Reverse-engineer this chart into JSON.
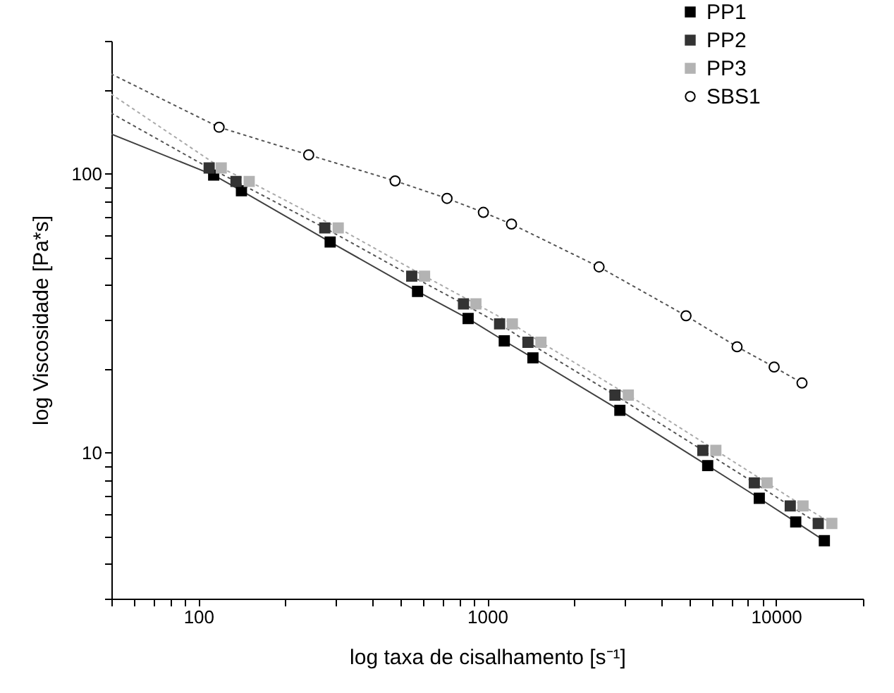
{
  "chart_data": {
    "type": "scatter",
    "xlabel": "log taxa de cisalhamento [s⁻¹]",
    "ylabel": "log Viscosidade [Pa*s]",
    "log": "xy",
    "grid": false,
    "legend": "top right",
    "xlim": [
      50,
      20000
    ],
    "ylim": [
      3,
      300
    ],
    "xticks": [
      {
        "value": 50,
        "label": null
      },
      {
        "value": 60,
        "label": null
      },
      {
        "value": 70,
        "label": null
      },
      {
        "value": 80,
        "label": null
      },
      {
        "value": 90,
        "label": null
      },
      100,
      {
        "value": 200,
        "label": null
      },
      {
        "value": 300,
        "label": null
      },
      {
        "value": 400,
        "label": null
      },
      {
        "value": 500,
        "label": null
      },
      {
        "value": 600,
        "label": null
      },
      {
        "value": 700,
        "label": null
      },
      {
        "value": 800,
        "label": null
      },
      {
        "value": 900,
        "label": null
      },
      1000,
      {
        "value": 2000,
        "label": null
      },
      {
        "value": 3000,
        "label": null
      },
      {
        "value": 4000,
        "label": null
      },
      {
        "value": 5000,
        "label": null
      },
      {
        "value": 6000,
        "label": null
      },
      {
        "value": 7000,
        "label": null
      },
      {
        "value": 8000,
        "label": null
      },
      {
        "value": 9000,
        "label": null
      },
      10000,
      {
        "value": 20000,
        "label": null
      }
    ],
    "yticks": [
      {
        "value": 3,
        "label": null
      },
      {
        "value": 4,
        "label": null
      },
      {
        "value": 5,
        "label": null
      },
      {
        "value": 6,
        "label": null
      },
      {
        "value": 7,
        "label": null
      },
      {
        "value": 8,
        "label": null
      },
      {
        "value": 9,
        "label": null
      },
      10,
      {
        "value": 20,
        "label": null
      },
      {
        "value": 30,
        "label": null
      },
      {
        "value": 40,
        "label": null
      },
      {
        "value": 50,
        "label": null
      },
      {
        "value": 60,
        "label": null
      },
      {
        "value": 70,
        "label": null
      },
      {
        "value": 80,
        "label": null
      },
      {
        "value": 90,
        "label": null
      },
      100,
      {
        "value": 200,
        "label": null
      },
      {
        "value": 300,
        "label": null
      }
    ],
    "series": [
      {
        "name": "PP1",
        "marker": "square",
        "color": "#000000",
        "x": [
          113,
          141,
          286,
          574,
          859,
          1146,
          1440,
          2880,
          5800,
          8750,
          11700,
          14700
        ],
        "values": [
          99,
          87,
          57,
          37.9,
          30.3,
          25.2,
          21.9,
          14.2,
          9.0,
          6.87,
          5.65,
          4.84
        ]
      },
      {
        "name": "PP2",
        "marker": "square",
        "color": "#333333",
        "x": [
          109,
          135,
          274,
          548,
          828,
          1104,
          1384,
          2770,
          5580,
          8410,
          11200,
          14000
        ],
        "values": [
          105,
          94,
          64,
          43,
          34.2,
          29,
          24.9,
          16.1,
          10.2,
          7.8,
          6.45,
          5.58
        ]
      },
      {
        "name": "PP3",
        "marker": "square",
        "color": "#b3b3b3",
        "x": [
          120,
          150,
          305,
          607,
          914,
          1222,
          1535,
          3080,
          6190,
          9310,
          12400,
          15600
        ],
        "values": [
          105,
          94,
          64,
          43,
          34.2,
          29,
          24.9,
          16.1,
          10.2,
          7.8,
          6.45,
          5.58
        ]
      },
      {
        "name": "SBS1",
        "marker": "circle",
        "color": "#000000",
        "x": [
          118,
          241,
          480,
          726,
          970,
          1214,
          2440,
          4880,
          7330,
          9850,
          12300
        ],
        "values": [
          147,
          117,
          94.4,
          81.7,
          72.8,
          66.1,
          46.4,
          31.0,
          24.0,
          20.3,
          17.8
        ]
      },
      {
        "type": "line",
        "line_style": "solid",
        "color": "#404040",
        "x": [
          50,
          113,
          141,
          286,
          574,
          859,
          1146,
          1440,
          2880,
          5800,
          8750,
          11700,
          14700
        ],
        "values": [
          139,
          99,
          87,
          57,
          37.9,
          30.3,
          25.2,
          21.9,
          14.2,
          9.0,
          6.87,
          5.65,
          4.84
        ]
      },
      {
        "type": "line",
        "line_style": "dotted",
        "color": "#555555",
        "x": [
          50,
          109,
          135,
          274,
          548,
          828,
          1104,
          1384,
          2770,
          5580,
          8410,
          11200,
          14000
        ],
        "values": [
          165,
          105,
          94,
          64,
          43,
          34.2,
          29,
          24.9,
          16.1,
          10.2,
          7.8,
          6.45,
          5.58
        ]
      },
      {
        "type": "line",
        "line_style": "dotted",
        "color": "#aaaaaa",
        "x": [
          50,
          120,
          150,
          305,
          607,
          914,
          1222,
          1535,
          3080,
          6190,
          9310,
          12400,
          15600
        ],
        "values": [
          193,
          105,
          94,
          64,
          43,
          34.2,
          29,
          24.9,
          16.1,
          10.2,
          7.8,
          6.45,
          5.58
        ]
      },
      {
        "type": "line",
        "line_style": "dotted",
        "color": "#555555",
        "x": [
          50,
          118,
          241,
          480,
          726,
          970,
          1214,
          2440,
          4880,
          7330,
          9850,
          12300
        ],
        "values": [
          228,
          147,
          117,
          94.4,
          81.7,
          72.8,
          66.1,
          46.4,
          31.0,
          24.0,
          20.3,
          17.8
        ]
      }
    ]
  }
}
